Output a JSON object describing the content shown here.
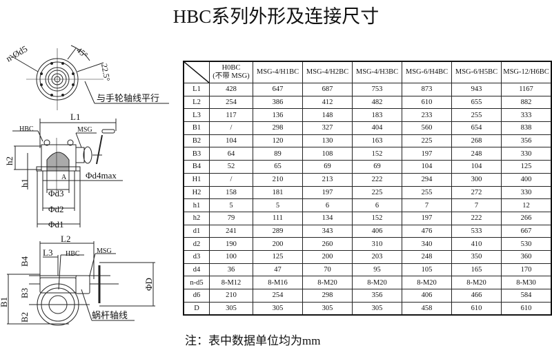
{
  "title": "HBC系列外形及连接尺寸",
  "drawing_labels": {
    "n_d5": "n-Ød5",
    "angle45": "45°",
    "angle22": "22.5°",
    "parallel": "与手轮轴线平行",
    "L1": "L1",
    "HBC": "HBC",
    "MSG": "MSG",
    "h2": "h2",
    "h1": "h1",
    "A": "A",
    "d4max": "Φd4max",
    "d3": "Φd3",
    "d2": "Φd2",
    "d1": "Φd1",
    "L2": "L2",
    "L3": "L3",
    "B4": "B4",
    "B3": "B3",
    "B2": "B2",
    "B1": "B1",
    "D": "ΦD",
    "worm_axis": "蜗杆轴线"
  },
  "table": {
    "headers": [
      "H0BC",
      "(不带 MSG)",
      "MSG-4/H1BC",
      "MSG-4/H2BC",
      "MSG-4/H3BC",
      "MSG-6/H4BC",
      "MSG-6/H5BC",
      "MSG-12/H6BC"
    ],
    "rows": [
      [
        "L1",
        "428",
        "647",
        "687",
        "753",
        "873",
        "943",
        "1167"
      ],
      [
        "L2",
        "254",
        "386",
        "412",
        "482",
        "610",
        "655",
        "882"
      ],
      [
        "L3",
        "117",
        "136",
        "148",
        "183",
        "233",
        "255",
        "333"
      ],
      [
        "B1",
        "/",
        "298",
        "327",
        "404",
        "560",
        "654",
        "838"
      ],
      [
        "B2",
        "104",
        "120",
        "130",
        "163",
        "225",
        "268",
        "356"
      ],
      [
        "B3",
        "64",
        "89",
        "108",
        "152",
        "197",
        "248",
        "330"
      ],
      [
        "B4",
        "52",
        "65",
        "69",
        "69",
        "104",
        "104",
        "125"
      ],
      [
        "H1",
        "/",
        "210",
        "213",
        "222",
        "294",
        "300",
        "400"
      ],
      [
        "H2",
        "158",
        "181",
        "197",
        "225",
        "255",
        "272",
        "330"
      ],
      [
        "h1",
        "5",
        "5",
        "6",
        "6",
        "7",
        "7",
        "12"
      ],
      [
        "h2",
        "79",
        "111",
        "134",
        "152",
        "197",
        "222",
        "266"
      ],
      [
        "d1",
        "241",
        "289",
        "343",
        "406",
        "476",
        "533",
        "667"
      ],
      [
        "d2",
        "190",
        "200",
        "260",
        "310",
        "340",
        "410",
        "530"
      ],
      [
        "d3",
        "100",
        "125",
        "200",
        "203",
        "248",
        "350",
        "360"
      ],
      [
        "d4",
        "36",
        "47",
        "70",
        "95",
        "105",
        "165",
        "170"
      ],
      [
        "n-d5",
        "8-M12",
        "8-M16",
        "8-M20",
        "8-M20",
        "8-M20",
        "8-M20",
        "8-M30"
      ],
      [
        "d6",
        "210",
        "254",
        "298",
        "356",
        "406",
        "466",
        "584"
      ],
      [
        "D",
        "305",
        "305",
        "305",
        "305",
        "458",
        "610",
        "610"
      ]
    ]
  },
  "note": "注：表中数据单位均为mm"
}
